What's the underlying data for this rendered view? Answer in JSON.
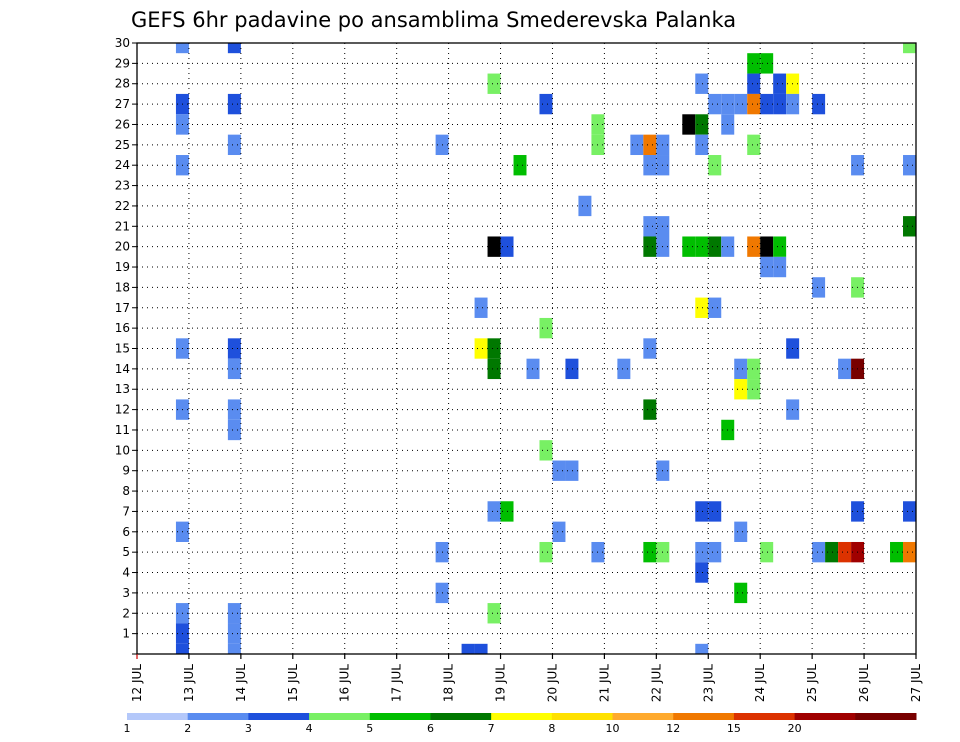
{
  "title": "GEFS 6hr padavine po ansamblima Smederevska Palanka",
  "chart_data": {
    "type": "heatmap",
    "title": "GEFS 6hr padavine po ansamblima Smederevska Palanka",
    "x_tick_labels": [
      "12 JUL",
      "13 JUL",
      "14 JUL",
      "15 JUL",
      "16 JUL",
      "17 JUL",
      "18 JUL",
      "19 JUL",
      "20 JUL",
      "21 JUL",
      "22 JUL",
      "23 JUL",
      "24 JUL",
      "25 JUL",
      "26 JUL",
      "27 JUL"
    ],
    "y_tick_labels": [
      "1",
      "2",
      "3",
      "4",
      "5",
      "6",
      "7",
      "8",
      "9",
      "10",
      "11",
      "12",
      "13",
      "14",
      "15",
      "16",
      "17",
      "18",
      "19",
      "20",
      "21",
      "22",
      "23",
      "24",
      "25",
      "26",
      "27",
      "28",
      "29",
      "30"
    ],
    "x_range_days": [
      0,
      15
    ],
    "y_range_members": [
      0,
      30
    ],
    "grid": "dotted",
    "colorbar": {
      "labels": [
        "1",
        "2",
        "3",
        "4",
        "5",
        "6",
        "7",
        "8",
        "10",
        "12",
        "15",
        "20"
      ],
      "colors": [
        "#b4c8fa",
        "#5a8cf0",
        "#1e50dc",
        "#78f064",
        "#00be00",
        "#007800",
        "#ffff00",
        "#ffe100",
        "#ffaa2d",
        "#f07800",
        "#dc3200",
        "#a00000",
        "#780000"
      ]
    },
    "cells": [
      {
        "x": 0.875,
        "y": 30,
        "c": 1
      },
      {
        "x": 1.875,
        "y": 30,
        "c": 2
      },
      {
        "x": 14.875,
        "y": 30,
        "c": 3
      },
      {
        "x": 11.875,
        "y": 29,
        "c": 4
      },
      {
        "x": 12.125,
        "y": 29,
        "c": 4
      },
      {
        "x": 6.875,
        "y": 28,
        "c": 3
      },
      {
        "x": 10.875,
        "y": 28,
        "c": 1
      },
      {
        "x": 11.875,
        "y": 28,
        "c": 2
      },
      {
        "x": 12.375,
        "y": 28,
        "c": 2
      },
      {
        "x": 12.625,
        "y": 28,
        "c": 6
      },
      {
        "x": 0.875,
        "y": 27,
        "c": 2
      },
      {
        "x": 1.875,
        "y": 27,
        "c": 2
      },
      {
        "x": 7.875,
        "y": 27,
        "c": 2
      },
      {
        "x": 11.125,
        "y": 27,
        "c": 1
      },
      {
        "x": 11.375,
        "y": 27,
        "c": 1
      },
      {
        "x": 11.625,
        "y": 27,
        "c": 1
      },
      {
        "x": 11.875,
        "y": 27,
        "c": 9
      },
      {
        "x": 12.125,
        "y": 27,
        "c": 2
      },
      {
        "x": 12.375,
        "y": 27,
        "c": 2
      },
      {
        "x": 12.625,
        "y": 27,
        "c": 1
      },
      {
        "x": 13.125,
        "y": 27,
        "c": 2
      },
      {
        "x": 0.875,
        "y": 26,
        "c": 1
      },
      {
        "x": 8.875,
        "y": 26,
        "c": 3
      },
      {
        "x": 10.625,
        "y": 26,
        "c": 13
      },
      {
        "x": 10.875,
        "y": 26,
        "c": 5
      },
      {
        "x": 11.375,
        "y": 26,
        "c": 1
      },
      {
        "x": 1.875,
        "y": 25,
        "c": 1
      },
      {
        "x": 5.875,
        "y": 25,
        "c": 1
      },
      {
        "x": 8.875,
        "y": 25,
        "c": 3
      },
      {
        "x": 9.625,
        "y": 25,
        "c": 1
      },
      {
        "x": 9.875,
        "y": 25,
        "c": 9
      },
      {
        "x": 10.125,
        "y": 25,
        "c": 1
      },
      {
        "x": 10.875,
        "y": 25,
        "c": 1
      },
      {
        "x": 11.875,
        "y": 25,
        "c": 3
      },
      {
        "x": 0.875,
        "y": 24,
        "c": 1
      },
      {
        "x": 7.375,
        "y": 24,
        "c": 4
      },
      {
        "x": 9.875,
        "y": 24,
        "c": 1
      },
      {
        "x": 10.125,
        "y": 24,
        "c": 1
      },
      {
        "x": 11.125,
        "y": 24,
        "c": 3
      },
      {
        "x": 13.875,
        "y": 24,
        "c": 1
      },
      {
        "x": 14.875,
        "y": 24,
        "c": 1
      },
      {
        "x": 8.625,
        "y": 22,
        "c": 1
      },
      {
        "x": 9.875,
        "y": 21,
        "c": 1
      },
      {
        "x": 10.125,
        "y": 21,
        "c": 1
      },
      {
        "x": 14.875,
        "y": 21,
        "c": 5
      },
      {
        "x": 6.875,
        "y": 20,
        "c": 13
      },
      {
        "x": 7.125,
        "y": 20,
        "c": 2
      },
      {
        "x": 9.875,
        "y": 20,
        "c": 5
      },
      {
        "x": 10.125,
        "y": 20,
        "c": 1
      },
      {
        "x": 10.625,
        "y": 20,
        "c": 4
      },
      {
        "x": 10.875,
        "y": 20,
        "c": 4
      },
      {
        "x": 11.125,
        "y": 20,
        "c": 5
      },
      {
        "x": 11.375,
        "y": 20,
        "c": 1
      },
      {
        "x": 11.875,
        "y": 20,
        "c": 9
      },
      {
        "x": 12.125,
        "y": 20,
        "c": 13
      },
      {
        "x": 12.375,
        "y": 20,
        "c": 4
      },
      {
        "x": 12.125,
        "y": 19,
        "c": 1
      },
      {
        "x": 12.375,
        "y": 19,
        "c": 1
      },
      {
        "x": 13.125,
        "y": 18,
        "c": 1
      },
      {
        "x": 13.875,
        "y": 18,
        "c": 3
      },
      {
        "x": 6.625,
        "y": 17,
        "c": 1
      },
      {
        "x": 10.875,
        "y": 17,
        "c": 6
      },
      {
        "x": 11.125,
        "y": 17,
        "c": 1
      },
      {
        "x": 7.875,
        "y": 16,
        "c": 3
      },
      {
        "x": 0.875,
        "y": 15,
        "c": 1
      },
      {
        "x": 1.875,
        "y": 15,
        "c": 2
      },
      {
        "x": 6.625,
        "y": 15,
        "c": 6
      },
      {
        "x": 6.875,
        "y": 15,
        "c": 5
      },
      {
        "x": 9.875,
        "y": 15,
        "c": 1
      },
      {
        "x": 12.625,
        "y": 15,
        "c": 2
      },
      {
        "x": 1.875,
        "y": 14,
        "c": 1
      },
      {
        "x": 6.875,
        "y": 14,
        "c": 5
      },
      {
        "x": 7.625,
        "y": 14,
        "c": 1
      },
      {
        "x": 8.375,
        "y": 14,
        "c": 2
      },
      {
        "x": 9.375,
        "y": 14,
        "c": 1
      },
      {
        "x": 11.625,
        "y": 14,
        "c": 1
      },
      {
        "x": 11.875,
        "y": 14,
        "c": 3
      },
      {
        "x": 13.625,
        "y": 14,
        "c": 1
      },
      {
        "x": 13.875,
        "y": 14,
        "c": 12
      },
      {
        "x": 11.625,
        "y": 13,
        "c": 6
      },
      {
        "x": 11.875,
        "y": 13,
        "c": 3
      },
      {
        "x": 0.875,
        "y": 12,
        "c": 1
      },
      {
        "x": 1.875,
        "y": 12,
        "c": 1
      },
      {
        "x": 9.875,
        "y": 12,
        "c": 5
      },
      {
        "x": 12.625,
        "y": 12,
        "c": 1
      },
      {
        "x": 1.875,
        "y": 11,
        "c": 1
      },
      {
        "x": 11.375,
        "y": 11,
        "c": 4
      },
      {
        "x": 7.875,
        "y": 10,
        "c": 3
      },
      {
        "x": 8.125,
        "y": 9,
        "c": 1
      },
      {
        "x": 8.375,
        "y": 9,
        "c": 1
      },
      {
        "x": 10.125,
        "y": 9,
        "c": 1
      },
      {
        "x": 6.875,
        "y": 7,
        "c": 1
      },
      {
        "x": 7.125,
        "y": 7,
        "c": 4
      },
      {
        "x": 10.875,
        "y": 7,
        "c": 2
      },
      {
        "x": 11.125,
        "y": 7,
        "c": 2
      },
      {
        "x": 13.875,
        "y": 7,
        "c": 2
      },
      {
        "x": 14.875,
        "y": 7,
        "c": 2
      },
      {
        "x": 0.875,
        "y": 6,
        "c": 1
      },
      {
        "x": 8.125,
        "y": 6,
        "c": 1
      },
      {
        "x": 11.625,
        "y": 6,
        "c": 1
      },
      {
        "x": 5.875,
        "y": 5,
        "c": 1
      },
      {
        "x": 7.875,
        "y": 5,
        "c": 3
      },
      {
        "x": 8.875,
        "y": 5,
        "c": 1
      },
      {
        "x": 9.875,
        "y": 5,
        "c": 4
      },
      {
        "x": 10.125,
        "y": 5,
        "c": 3
      },
      {
        "x": 10.875,
        "y": 5,
        "c": 1
      },
      {
        "x": 11.125,
        "y": 5,
        "c": 1
      },
      {
        "x": 12.125,
        "y": 5,
        "c": 3
      },
      {
        "x": 13.125,
        "y": 5,
        "c": 1
      },
      {
        "x": 13.375,
        "y": 5,
        "c": 5
      },
      {
        "x": 13.625,
        "y": 5,
        "c": 10
      },
      {
        "x": 13.875,
        "y": 5,
        "c": 11
      },
      {
        "x": 14.625,
        "y": 5,
        "c": 4
      },
      {
        "x": 14.875,
        "y": 5,
        "c": 9
      },
      {
        "x": 10.875,
        "y": 4,
        "c": 2
      },
      {
        "x": 5.875,
        "y": 3,
        "c": 1
      },
      {
        "x": 11.625,
        "y": 3,
        "c": 4
      },
      {
        "x": 0.875,
        "y": 2,
        "c": 1
      },
      {
        "x": 1.875,
        "y": 2,
        "c": 1
      },
      {
        "x": 6.875,
        "y": 2,
        "c": 3
      },
      {
        "x": 0.875,
        "y": 1,
        "c": 2
      },
      {
        "x": 1.875,
        "y": 1,
        "c": 1
      },
      {
        "x": 0.875,
        "y": 0,
        "c": 2
      },
      {
        "x": 1.875,
        "y": 0,
        "c": 1
      },
      {
        "x": 6.375,
        "y": 0,
        "c": 2
      },
      {
        "x": 6.625,
        "y": 0,
        "c": 2
      },
      {
        "x": 10.875,
        "y": 0,
        "c": 1
      }
    ]
  }
}
